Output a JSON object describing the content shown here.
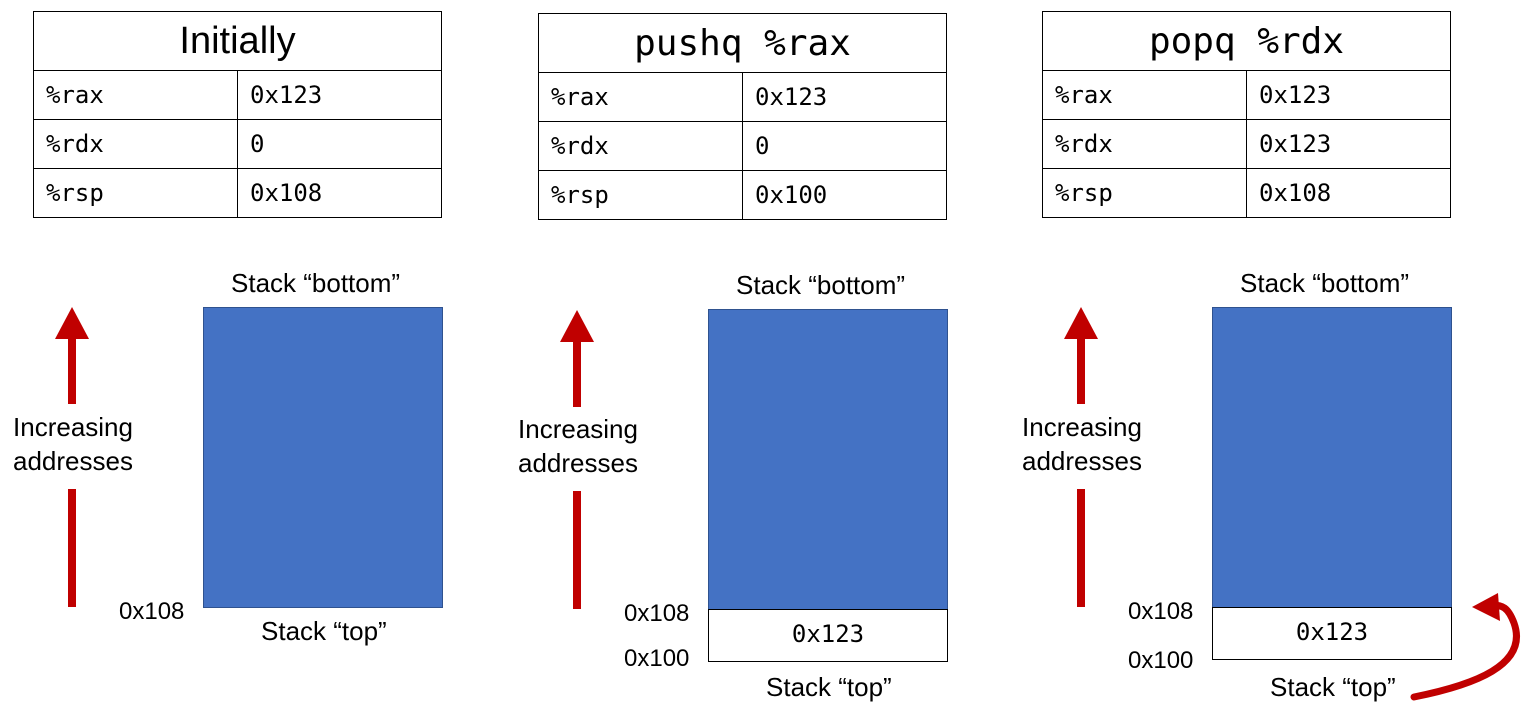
{
  "registers": [
    "%rax",
    "%rdx",
    "%rsp"
  ],
  "panels": [
    {
      "title": "Initially",
      "values": [
        "0x123",
        "0",
        "0x108"
      ],
      "stack_bottom_label": "Stack “bottom”",
      "stack_top_label": "Stack “top”",
      "addr_labels": [
        "0x108"
      ],
      "pushed_value": ""
    },
    {
      "title": "pushq %rax",
      "values": [
        "0x123",
        "0",
        "0x100"
      ],
      "stack_bottom_label": "Stack “bottom”",
      "stack_top_label": "Stack “top”",
      "addr_labels": [
        "0x108",
        "0x100"
      ],
      "pushed_value": "0x123"
    },
    {
      "title": "popq %rdx",
      "values": [
        "0x123",
        "0x123",
        "0x108"
      ],
      "stack_bottom_label": "Stack “bottom”",
      "stack_top_label": "Stack “top”",
      "addr_labels": [
        "0x108",
        "0x100"
      ],
      "pushed_value": "0x123"
    }
  ],
  "increasing_label": [
    "Increasing",
    "addresses"
  ],
  "colors": {
    "stack_fill": "#4472C4",
    "arrow": "#C00000"
  }
}
